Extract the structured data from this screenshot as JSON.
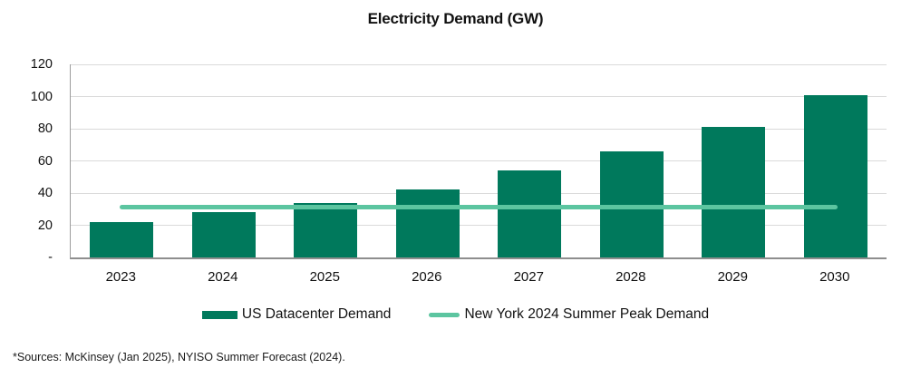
{
  "title": "Electricity Demand (GW)",
  "source_note": "*Sources: McKinsey (Jan 2025), NYISO Summer Forecast (2024).",
  "colors": {
    "bar_green": "#00795c",
    "line_green": "#5cc5a0",
    "gridline": "#dadada",
    "axis": "#8e8e8e",
    "text": "#111111"
  },
  "legend": {
    "items": [
      {
        "label": "US Datacenter Demand",
        "swatch": "bar-swatch",
        "color": "#00795c"
      },
      {
        "label": "New York 2024 Summer Peak Demand",
        "swatch": "line-swatch",
        "color": "#5cc5a0"
      }
    ]
  },
  "chart_data": {
    "type": "bar",
    "title": "Electricity Demand (GW)",
    "categories": [
      "2023",
      "2024",
      "2025",
      "2026",
      "2027",
      "2028",
      "2029",
      "2030"
    ],
    "series": [
      {
        "name": "US Datacenter Demand",
        "type": "bar",
        "color": "#00795c",
        "values": [
          22,
          28,
          34,
          42,
          54,
          66,
          81,
          101
        ]
      },
      {
        "name": "New York 2024 Summer Peak Demand",
        "type": "line",
        "color": "#5cc5a0",
        "constant_value": 31.5,
        "values": [
          31.5,
          31.5,
          31.5,
          31.5,
          31.5,
          31.5,
          31.5,
          31.5
        ]
      }
    ],
    "xlabel": "",
    "ylabel": "",
    "ylim": [
      0,
      120
    ],
    "yticks": [
      0,
      20,
      40,
      60,
      80,
      100,
      120
    ],
    "ytick_labels": [
      "-",
      "20",
      "40",
      "60",
      "80",
      "100",
      "120"
    ],
    "grid": true,
    "legend_position": "bottom"
  }
}
